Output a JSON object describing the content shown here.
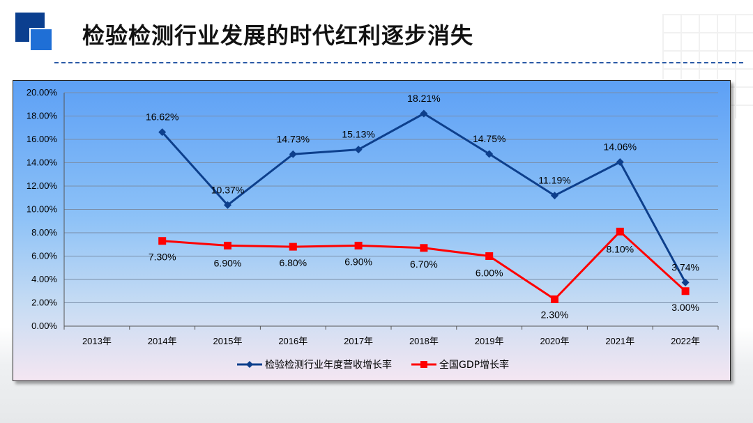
{
  "slide": {
    "title": "检验检测行业发展的时代红利逐步消失"
  },
  "chart_data": {
    "type": "line",
    "categories": [
      "2013年",
      "2014年",
      "2015年",
      "2016年",
      "2017年",
      "2018年",
      "2019年",
      "2020年",
      "2021年",
      "2022年"
    ],
    "ylim": [
      0,
      20
    ],
    "yticks": [
      "0.00%",
      "2.00%",
      "4.00%",
      "6.00%",
      "8.00%",
      "10.00%",
      "12.00%",
      "14.00%",
      "16.00%",
      "18.00%",
      "20.00%"
    ],
    "grid": true,
    "legend_position": "bottom",
    "series": [
      {
        "name": "检验检测行业年度营收增长率",
        "color": "#0d3f8c",
        "marker": "diamond",
        "values": [
          null,
          16.62,
          10.37,
          14.73,
          15.13,
          18.21,
          14.75,
          11.19,
          14.06,
          3.74
        ],
        "labels": [
          "",
          "16.62%",
          "10.37%",
          "14.73%",
          "15.13%",
          "18.21%",
          "14.75%",
          "11.19%",
          "14.06%",
          "3.74%"
        ]
      },
      {
        "name": "全国GDP增长率",
        "color": "#ff0000",
        "marker": "square",
        "values": [
          null,
          7.3,
          6.9,
          6.8,
          6.9,
          6.7,
          6.0,
          2.3,
          8.1,
          3.0
        ],
        "labels": [
          "",
          "7.30%",
          "6.90%",
          "6.80%",
          "6.90%",
          "6.70%",
          "6.00%",
          "2.30%",
          "8.10%",
          "3.00%"
        ]
      }
    ]
  }
}
